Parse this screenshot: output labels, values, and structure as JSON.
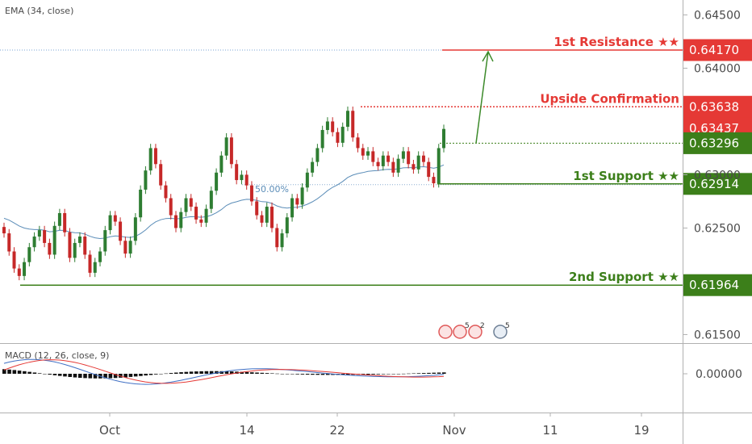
{
  "indicators": {
    "ema_label": "EMA (34, close)",
    "macd_label": "MACD (12, 26, close, 9)",
    "fib_label": "50.00%",
    "event_badges": [
      "5",
      "2",
      "5"
    ]
  },
  "colors": {
    "up": "#2e7d32",
    "down": "#c62828",
    "resistance": "#e53935",
    "support": "#3c7f1a",
    "ema": "#5b8db8",
    "macd_line": "#3f6fc4",
    "signal_line": "#e53935",
    "neutral_tag": "#f2f2f2"
  },
  "chart_data": {
    "type": "candlestick",
    "x_ticks": [
      "Oct",
      "14",
      "22",
      "Nov",
      "11",
      "19"
    ],
    "price_axis": [
      "0.64500",
      "0.64000",
      "0.63000",
      "0.62500",
      "0.61500"
    ],
    "macd_axis": [
      "0.00000"
    ],
    "ylim": [
      0.6142,
      0.6464
    ],
    "levels": [
      {
        "name": "1st Resistance ★★",
        "value": 0.6417,
        "tag": "0.64170",
        "role": "resistance"
      },
      {
        "name": "Upside Confirmation",
        "value": 0.63638,
        "tag": "0.63638",
        "role": "resistance"
      },
      {
        "name": "1st Support ★★",
        "value": 0.62914,
        "tag": "0.62914",
        "role": "support"
      },
      {
        "name": "2nd Support ★★",
        "value": 0.61964,
        "tag": "0.61964",
        "role": "support"
      }
    ],
    "price_tags": [
      {
        "value": 0.63437,
        "tag": "0.63437",
        "role": "resistance"
      },
      {
        "value": 0.63296,
        "tag": "0.63296",
        "role": "support"
      }
    ],
    "closes": [
      0.6245,
      0.6228,
      0.6212,
      0.6205,
      0.6218,
      0.6232,
      0.6242,
      0.6248,
      0.6236,
      0.6225,
      0.6252,
      0.6264,
      0.6246,
      0.6222,
      0.6236,
      0.6242,
      0.6225,
      0.6208,
      0.6218,
      0.6228,
      0.6248,
      0.6262,
      0.6256,
      0.6238,
      0.6226,
      0.6238,
      0.626,
      0.6286,
      0.6304,
      0.6325,
      0.631,
      0.629,
      0.6278,
      0.6262,
      0.625,
      0.6265,
      0.6278,
      0.627,
      0.6258,
      0.6255,
      0.6268,
      0.6285,
      0.6302,
      0.6318,
      0.6335,
      0.631,
      0.6295,
      0.63,
      0.629,
      0.6275,
      0.6262,
      0.6255,
      0.627,
      0.625,
      0.6232,
      0.6245,
      0.626,
      0.6278,
      0.6272,
      0.6288,
      0.6302,
      0.6312,
      0.6325,
      0.6342,
      0.635,
      0.634,
      0.633,
      0.6345,
      0.636,
      0.6335,
      0.6325,
      0.6318,
      0.6322,
      0.6312,
      0.6308,
      0.6318,
      0.6312,
      0.6302,
      0.6315,
      0.6322,
      0.631,
      0.6305,
      0.6318,
      0.6312,
      0.6298,
      0.6292,
      0.6325,
      0.6343
    ]
  }
}
